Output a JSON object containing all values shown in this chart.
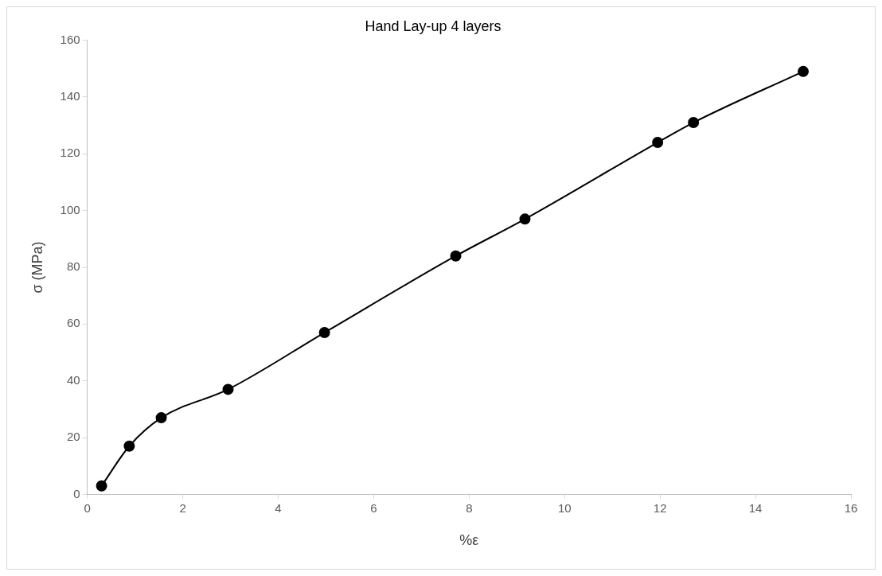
{
  "chart_data": {
    "type": "line",
    "title": "Hand Lay-up 4 layers",
    "xlabel": "%ε",
    "ylabel": "σ (MPa)",
    "x": [
      0.3,
      0.88,
      1.55,
      2.95,
      4.97,
      7.72,
      9.17,
      11.95,
      12.7,
      15
    ],
    "series": [
      {
        "color": "#000000",
        "values": [
          3,
          17,
          27,
          37,
          57,
          84,
          97,
          124,
          131,
          149
        ]
      }
    ],
    "xlim": [
      0,
      16
    ],
    "xticks": [
      0,
      2,
      4,
      6,
      8,
      10,
      12,
      14,
      16
    ],
    "ylim": [
      0,
      160
    ],
    "yticks": [
      0,
      20,
      40,
      60,
      80,
      100,
      120,
      140,
      160
    ],
    "grid": false,
    "legend": false,
    "marker": "circle",
    "line_style": "solid"
  }
}
